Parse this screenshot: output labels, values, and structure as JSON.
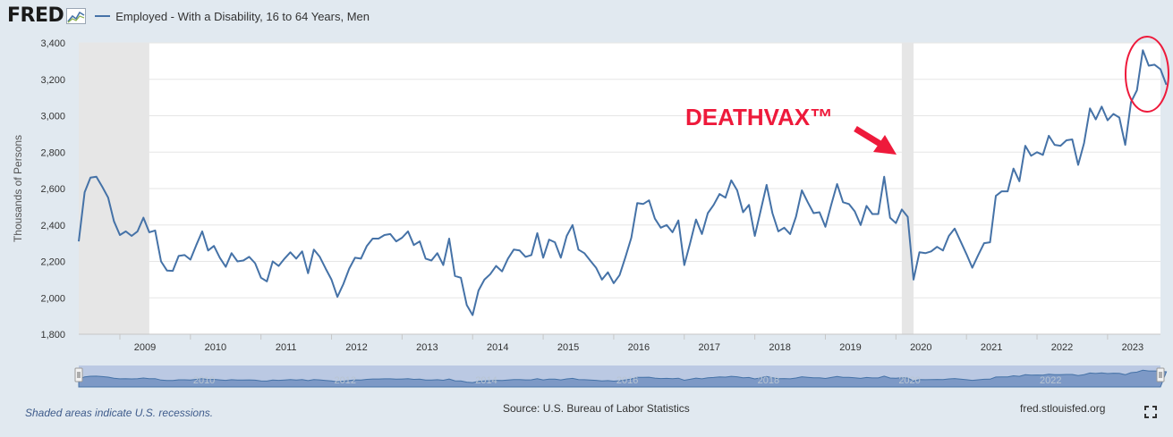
{
  "header": {
    "logo": "FRED",
    "series_label": "Employed - With a Disability, 16 to 64 Years, Men"
  },
  "footer": {
    "recession_note": "Shaded areas indicate U.S. recessions.",
    "source": "Source: U.S. Bureau of Labor Statistics",
    "site": "fred.stlouisfed.org"
  },
  "colors": {
    "line": "#4572a7",
    "recession": "#e6e6e6",
    "annotation": "#ee1a3b",
    "background": "#e1e9f0"
  },
  "icons": [
    "fred-logo-chart-icon",
    "fullscreen-icon"
  ],
  "chart_data": {
    "type": "line",
    "title": "Employed - With a Disability, 16 to 64 Years, Men",
    "xlabel": "",
    "ylabel": "Thousands of Persons",
    "ylim": [
      1800,
      3400
    ],
    "yticks": [
      1800,
      2000,
      2200,
      2400,
      2600,
      2800,
      3000,
      3200,
      3400
    ],
    "ytick_labels": [
      "1,800",
      "2,000",
      "2,200",
      "2,400",
      "2,600",
      "2,800",
      "3,000",
      "3,200",
      "3,400"
    ],
    "xlim": [
      2008.4167,
      2023.75
    ],
    "xticks": [
      2009,
      2010,
      2011,
      2012,
      2013,
      2014,
      2015,
      2016,
      2017,
      2018,
      2019,
      2020,
      2021,
      2022,
      2023
    ],
    "navigator_labels": [
      "2010",
      "2012",
      "2014",
      "2016",
      "2018",
      "2020",
      "2022"
    ],
    "grid": true,
    "recessions": [
      [
        2008.4167,
        2009.4167
      ],
      [
        2020.0833,
        2020.25
      ]
    ],
    "series": [
      {
        "name": "Employed - With a Disability, 16 to 64 Years, Men",
        "start": 2008.4167,
        "step_months": 1,
        "values": [
          2310,
          2580,
          2660,
          2665,
          2610,
          2550,
          2420,
          2345,
          2365,
          2340,
          2365,
          2440,
          2360,
          2370,
          2200,
          2150,
          2148,
          2230,
          2235,
          2210,
          2290,
          2365,
          2260,
          2285,
          2220,
          2170,
          2245,
          2200,
          2205,
          2225,
          2190,
          2110,
          2090,
          2200,
          2175,
          2215,
          2250,
          2215,
          2255,
          2135,
          2265,
          2225,
          2160,
          2100,
          2005,
          2075,
          2160,
          2220,
          2215,
          2285,
          2325,
          2325,
          2345,
          2350,
          2310,
          2330,
          2365,
          2290,
          2310,
          2215,
          2205,
          2245,
          2180,
          2325,
          2120,
          2110,
          1960,
          1905,
          2040,
          2100,
          2130,
          2175,
          2145,
          2215,
          2265,
          2260,
          2225,
          2235,
          2355,
          2220,
          2320,
          2305,
          2220,
          2340,
          2400,
          2265,
          2245,
          2205,
          2165,
          2100,
          2140,
          2080,
          2125,
          2225,
          2330,
          2520,
          2515,
          2535,
          2435,
          2385,
          2400,
          2360,
          2425,
          2180,
          2300,
          2430,
          2350,
          2465,
          2510,
          2570,
          2550,
          2645,
          2590,
          2470,
          2510,
          2340,
          2480,
          2620,
          2465,
          2365,
          2385,
          2350,
          2445,
          2590,
          2525,
          2465,
          2470,
          2390,
          2510,
          2625,
          2525,
          2515,
          2475,
          2400,
          2505,
          2460,
          2460,
          2665,
          2440,
          2410,
          2485,
          2445,
          2100,
          2250,
          2245,
          2255,
          2280,
          2260,
          2340,
          2380,
          2310,
          2240,
          2165,
          2235,
          2300,
          2305,
          2560,
          2585,
          2585,
          2710,
          2640,
          2835,
          2780,
          2800,
          2785,
          2890,
          2840,
          2835,
          2865,
          2870,
          2730,
          2850,
          3040,
          2980,
          3050,
          2975,
          3010,
          2990,
          2840,
          3075,
          3140,
          3360,
          3275,
          3280,
          3255,
          3170
        ]
      }
    ],
    "annotations": [
      {
        "type": "text",
        "text": "DEATHVAX™"
      },
      {
        "type": "arrow"
      },
      {
        "type": "ellipse"
      }
    ]
  }
}
